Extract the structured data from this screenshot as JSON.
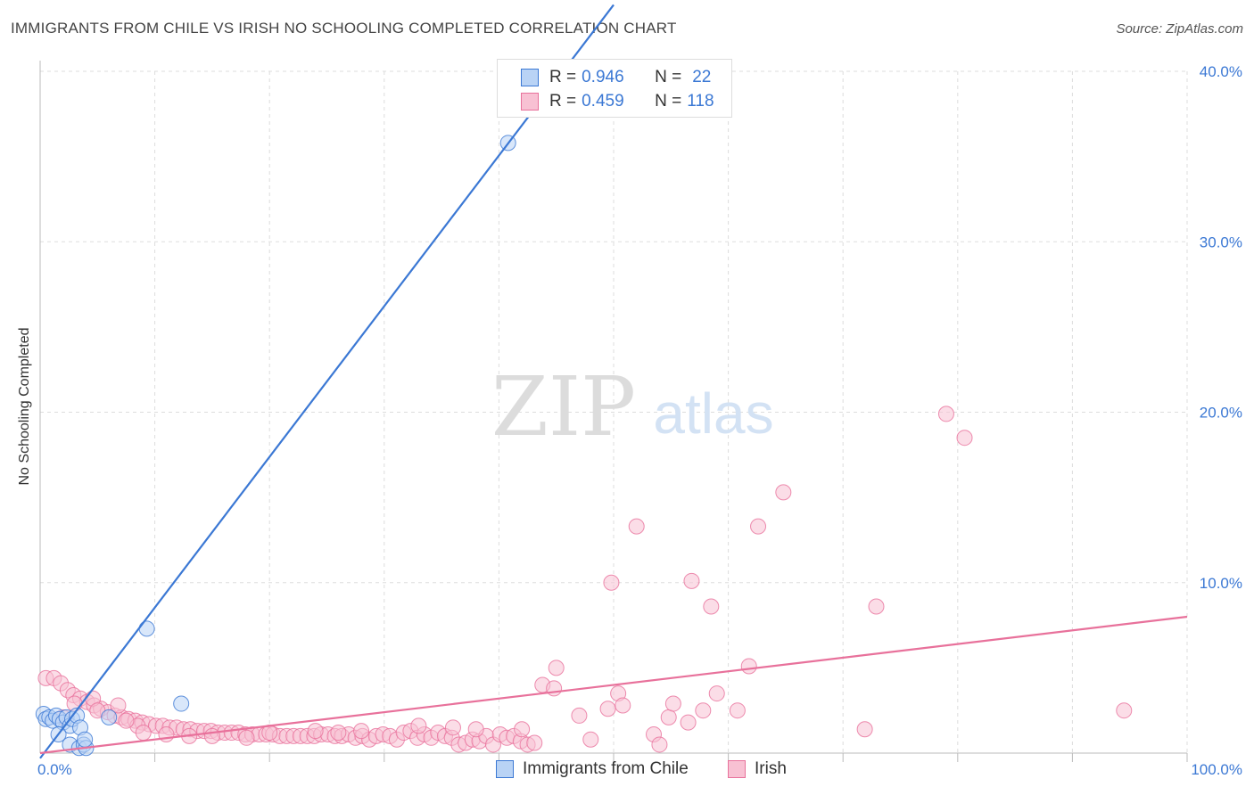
{
  "header": {
    "title": "IMMIGRANTS FROM CHILE VS IRISH NO SCHOOLING COMPLETED CORRELATION CHART",
    "source": "Source: ZipAtlas.com"
  },
  "watermark": {
    "zip": "ZIP",
    "atlas": "atlas"
  },
  "colors": {
    "blue": "#3b78d4",
    "blue_fill": "#b9d3f5",
    "pink": "#e8719b",
    "pink_fill": "#f8c1d3",
    "grid": "#dddddd",
    "tick_label": "#3b78d4"
  },
  "legend_top": [
    {
      "r_label": "R = ",
      "r_value": "0.946",
      "n_label": "N = ",
      "n_value": "22"
    },
    {
      "r_label": "R = ",
      "r_value": "0.459",
      "n_label": "N = ",
      "n_value": "118"
    }
  ],
  "chart_data": {
    "type": "scatter",
    "title": "IMMIGRANTS FROM CHILE VS IRISH NO SCHOOLING COMPLETED CORRELATION CHART",
    "xlabel": "",
    "ylabel": "No Schooling Completed",
    "xlim": [
      0,
      100
    ],
    "ylim": [
      0,
      40
    ],
    "x_ticks": [
      {
        "value": 0,
        "label": "0.0%"
      },
      {
        "value": 100,
        "label": "100.0%"
      }
    ],
    "y_ticks": [
      {
        "value": 10,
        "label": "10.0%"
      },
      {
        "value": 20,
        "label": "20.0%"
      },
      {
        "value": 30,
        "label": "30.0%"
      },
      {
        "value": 40,
        "label": "40.0%"
      }
    ],
    "grid": true,
    "legend_position": "bottom",
    "series": [
      {
        "name": "Immigrants from Chile",
        "color": "blue",
        "points": [
          [
            0.3,
            2.3
          ],
          [
            0.5,
            2.0
          ],
          [
            0.8,
            2.1
          ],
          [
            1.1,
            1.9
          ],
          [
            1.4,
            2.2
          ],
          [
            1.7,
            2.0
          ],
          [
            2.0,
            1.8
          ],
          [
            2.3,
            2.1
          ],
          [
            2.6,
            1.6
          ],
          [
            2.8,
            2.0
          ],
          [
            3.2,
            2.2
          ],
          [
            3.5,
            1.5
          ],
          [
            1.6,
            1.1
          ],
          [
            2.6,
            0.5
          ],
          [
            3.4,
            0.3
          ],
          [
            3.8,
            0.5
          ],
          [
            4.0,
            0.3
          ],
          [
            3.9,
            0.8
          ],
          [
            6.0,
            2.1
          ],
          [
            9.3,
            7.3
          ],
          [
            12.3,
            2.9
          ],
          [
            40.8,
            35.8
          ]
        ],
        "trend": {
          "x": [
            0,
            50
          ],
          "y": [
            -0.3,
            43.9
          ]
        }
      },
      {
        "name": "Irish",
        "color": "pink",
        "points": [
          [
            0.5,
            4.4
          ],
          [
            1.2,
            4.4
          ],
          [
            1.8,
            4.1
          ],
          [
            2.4,
            3.7
          ],
          [
            2.9,
            3.4
          ],
          [
            3.5,
            3.2
          ],
          [
            4.1,
            3.0
          ],
          [
            4.7,
            2.8
          ],
          [
            5.3,
            2.6
          ],
          [
            5.9,
            2.4
          ],
          [
            6.5,
            2.2
          ],
          [
            7.1,
            2.1
          ],
          [
            7.7,
            2.0
          ],
          [
            8.3,
            1.9
          ],
          [
            8.9,
            1.8
          ],
          [
            9.5,
            1.7
          ],
          [
            10.1,
            1.6
          ],
          [
            10.7,
            1.6
          ],
          [
            11.3,
            1.5
          ],
          [
            11.9,
            1.5
          ],
          [
            12.5,
            1.4
          ],
          [
            13.1,
            1.4
          ],
          [
            13.7,
            1.3
          ],
          [
            14.3,
            1.3
          ],
          [
            14.9,
            1.3
          ],
          [
            15.5,
            1.2
          ],
          [
            16.1,
            1.2
          ],
          [
            16.7,
            1.2
          ],
          [
            17.3,
            1.2
          ],
          [
            17.9,
            1.1
          ],
          [
            18.5,
            1.1
          ],
          [
            19.1,
            1.1
          ],
          [
            19.7,
            1.1
          ],
          [
            20.3,
            1.1
          ],
          [
            20.9,
            1.0
          ],
          [
            21.5,
            1.0
          ],
          [
            22.1,
            1.0
          ],
          [
            22.7,
            1.0
          ],
          [
            23.3,
            1.0
          ],
          [
            23.9,
            1.0
          ],
          [
            24.5,
            1.1
          ],
          [
            25.1,
            1.1
          ],
          [
            25.7,
            1.0
          ],
          [
            26.3,
            1.0
          ],
          [
            26.9,
            1.1
          ],
          [
            27.5,
            0.9
          ],
          [
            28.1,
            1.0
          ],
          [
            28.7,
            0.8
          ],
          [
            29.3,
            1.0
          ],
          [
            29.9,
            1.1
          ],
          [
            30.5,
            1.0
          ],
          [
            31.1,
            0.8
          ],
          [
            31.7,
            1.2
          ],
          [
            32.3,
            1.3
          ],
          [
            32.9,
            0.9
          ],
          [
            33.5,
            1.1
          ],
          [
            34.1,
            0.9
          ],
          [
            34.7,
            1.2
          ],
          [
            35.3,
            1.0
          ],
          [
            35.9,
            0.9
          ],
          [
            36.5,
            0.5
          ],
          [
            37.1,
            0.6
          ],
          [
            37.7,
            0.8
          ],
          [
            38.3,
            0.7
          ],
          [
            38.9,
            1.0
          ],
          [
            39.5,
            0.5
          ],
          [
            40.1,
            1.1
          ],
          [
            40.7,
            0.9
          ],
          [
            41.3,
            1.0
          ],
          [
            41.9,
            0.7
          ],
          [
            42.5,
            0.5
          ],
          [
            43.1,
            0.6
          ],
          [
            4.6,
            3.2
          ],
          [
            6.8,
            2.8
          ],
          [
            8.5,
            1.6
          ],
          [
            2.0,
            2.1
          ],
          [
            3.0,
            2.9
          ],
          [
            5.0,
            2.5
          ],
          [
            7.5,
            1.9
          ],
          [
            9.0,
            1.2
          ],
          [
            11.0,
            1.1
          ],
          [
            13.0,
            1.0
          ],
          [
            15.0,
            1.0
          ],
          [
            18.0,
            0.9
          ],
          [
            20.0,
            1.2
          ],
          [
            24.0,
            1.3
          ],
          [
            26.0,
            1.2
          ],
          [
            28.0,
            1.3
          ],
          [
            33.0,
            1.6
          ],
          [
            36.0,
            1.5
          ],
          [
            38.0,
            1.4
          ],
          [
            42.0,
            1.4
          ],
          [
            43.8,
            4.0
          ],
          [
            45.0,
            5.0
          ],
          [
            44.8,
            3.8
          ],
          [
            47.0,
            2.2
          ],
          [
            48.0,
            0.8
          ],
          [
            49.5,
            2.6
          ],
          [
            50.4,
            3.5
          ],
          [
            50.8,
            2.8
          ],
          [
            52.0,
            13.3
          ],
          [
            49.8,
            10.0
          ],
          [
            53.5,
            1.1
          ],
          [
            54.0,
            0.5
          ],
          [
            54.8,
            2.1
          ],
          [
            55.2,
            2.9
          ],
          [
            56.8,
            10.1
          ],
          [
            56.5,
            1.8
          ],
          [
            57.8,
            2.5
          ],
          [
            59.0,
            3.5
          ],
          [
            58.5,
            8.6
          ],
          [
            60.8,
            2.5
          ],
          [
            61.8,
            5.1
          ],
          [
            62.6,
            13.3
          ],
          [
            64.8,
            15.3
          ],
          [
            71.9,
            1.4
          ],
          [
            72.9,
            8.6
          ],
          [
            79.0,
            19.9
          ],
          [
            80.6,
            18.5
          ],
          [
            94.5,
            2.5
          ]
        ],
        "trend": {
          "x": [
            0,
            100
          ],
          "y": [
            0.0,
            8.0
          ]
        }
      }
    ]
  }
}
